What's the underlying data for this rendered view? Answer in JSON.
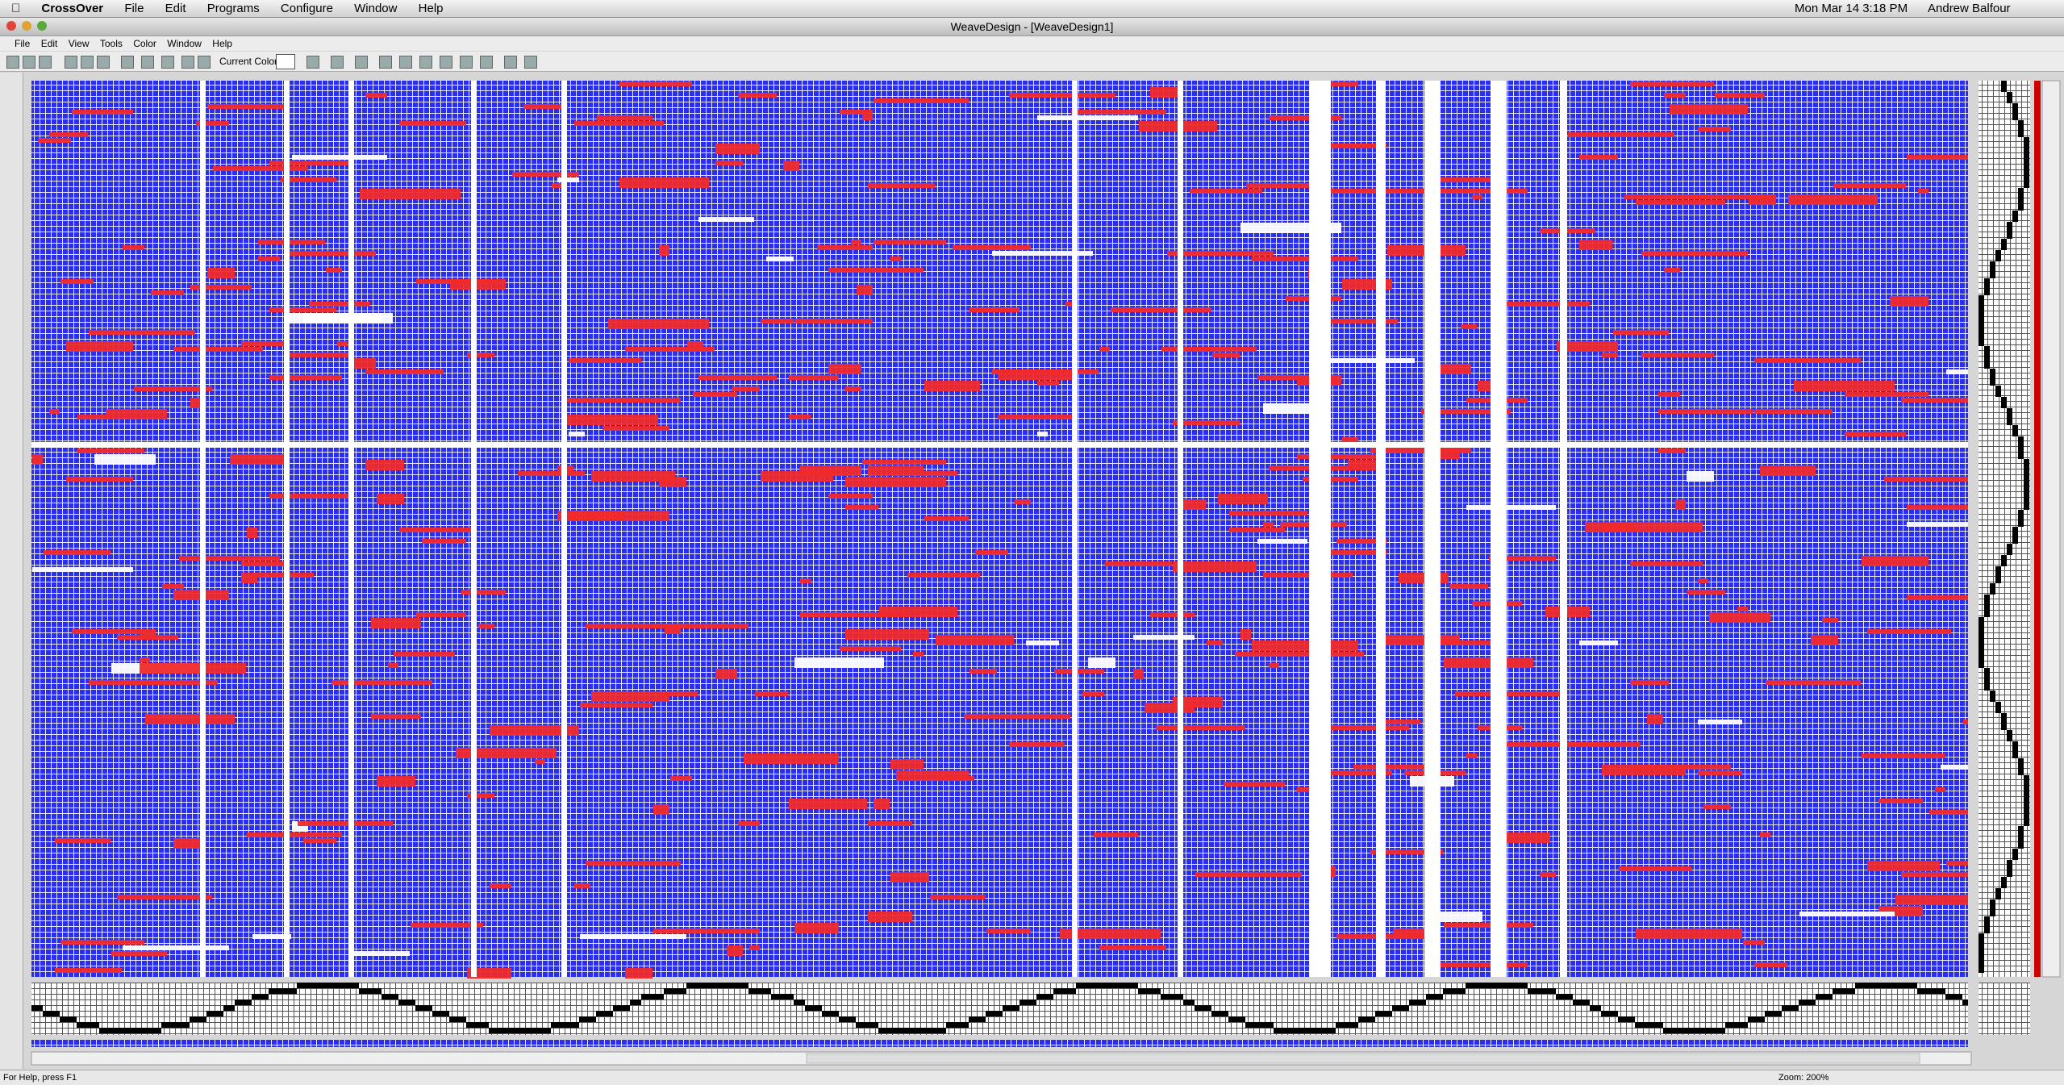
{
  "menubar": {
    "app": "CrossOver",
    "menus": [
      "File",
      "Edit",
      "Programs",
      "Configure",
      "Window",
      "Help"
    ],
    "clock": "Mon Mar 14  3:18 PM",
    "user": "Andrew Balfour"
  },
  "window": {
    "title": "WeaveDesign - [WeaveDesign1]",
    "menus": [
      "File",
      "Edit",
      "View",
      "Tools",
      "Color",
      "Window",
      "Help"
    ]
  },
  "toolbar": {
    "current_color_label": "Current Color:"
  },
  "status": {
    "help": "For Help, press F1",
    "zoom": "Zoom: 200%"
  }
}
